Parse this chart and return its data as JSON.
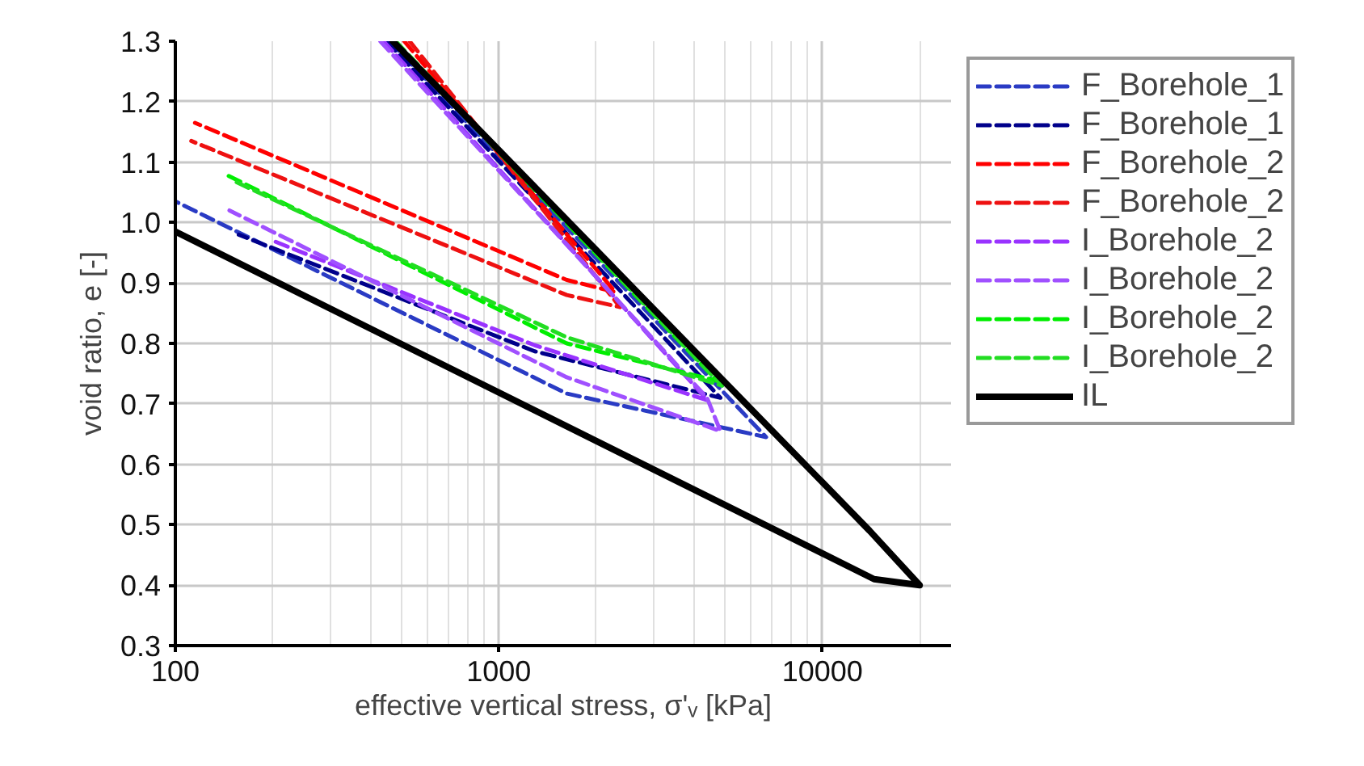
{
  "chart_data": {
    "type": "line",
    "xlabel": "effective vertical stress, σ'ᵥ [kPa]",
    "ylabel": "void ratio, e [-]",
    "log": "x",
    "xlim": [
      100,
      25000
    ],
    "xticks": [
      100,
      1000,
      10000
    ],
    "ylim": [
      0.3,
      1.3
    ],
    "yticks": [
      {
        "value": 0.3,
        "label": "0.3"
      },
      {
        "value": 0.4,
        "label": "0.4"
      },
      {
        "value": 0.5,
        "label": "0.5"
      },
      {
        "value": 0.6,
        "label": "0.6"
      },
      {
        "value": 0.7,
        "label": "0.7"
      },
      {
        "value": 0.8,
        "label": "0.8"
      },
      {
        "value": 0.9,
        "label": "0.9"
      },
      {
        "value": 1.0,
        "label": "1.0"
      },
      {
        "value": 1.1,
        "label": "1.1"
      },
      {
        "value": 1.2,
        "label": "1.2"
      },
      {
        "value": 1.3,
        "label": "1.3"
      }
    ],
    "grid": true,
    "legend": "right",
    "line_style": "dashed",
    "series": [
      {
        "name": "F_Borehole_1",
        "color": "#2a3bc4",
        "x": [
          460,
          6700,
          1622,
          100
        ],
        "values": [
          1.3,
          0.645,
          0.717,
          1.035
        ]
      },
      {
        "name": "F_Borehole_1",
        "color": "#00008b",
        "x": [
          450,
          4840,
          1290,
          157
        ],
        "values": [
          1.3,
          0.71,
          0.787,
          0.98
        ]
      },
      {
        "name": "F_Borehole_2",
        "color": "#ff0000",
        "x": [
          510,
          2290,
          1622,
          115
        ],
        "values": [
          1.3,
          0.885,
          0.905,
          1.165
        ]
      },
      {
        "name": "F_Borehole_2",
        "color": "#ee1111",
        "x": [
          530,
          2370,
          1622,
          112
        ],
        "values": [
          1.3,
          0.86,
          0.88,
          1.135
        ]
      },
      {
        "name": "I_Borehole_2",
        "color": "#9933ff",
        "x": [
          440,
          4415,
          1290,
          200
        ],
        "values": [
          1.3,
          0.706,
          0.797,
          0.97
        ]
      },
      {
        "name": "I_Borehole_2",
        "color": "#a050ff",
        "x": [
          430,
          4400,
          4840,
          1622,
          147
        ],
        "values": [
          1.3,
          0.71,
          0.655,
          0.744,
          1.02
        ]
      },
      {
        "name": "I_Borehole_2",
        "color": "#00ee00",
        "x": [
          470,
          4730,
          1622,
          145
        ],
        "values": [
          1.3,
          0.738,
          0.8,
          1.078
        ]
      },
      {
        "name": "I_Borehole_2",
        "color": "#22dd22",
        "x": [
          480,
          4900,
          1622,
          150
        ],
        "values": [
          1.3,
          0.73,
          0.81,
          1.07
        ]
      },
      {
        "name": "IL",
        "color": "#000000",
        "line_style": "solid",
        "x": [
          100,
          14450,
          20000,
          14000,
          470
        ],
        "values": [
          0.985,
          0.41,
          0.4,
          0.49,
          1.3
        ]
      }
    ]
  }
}
